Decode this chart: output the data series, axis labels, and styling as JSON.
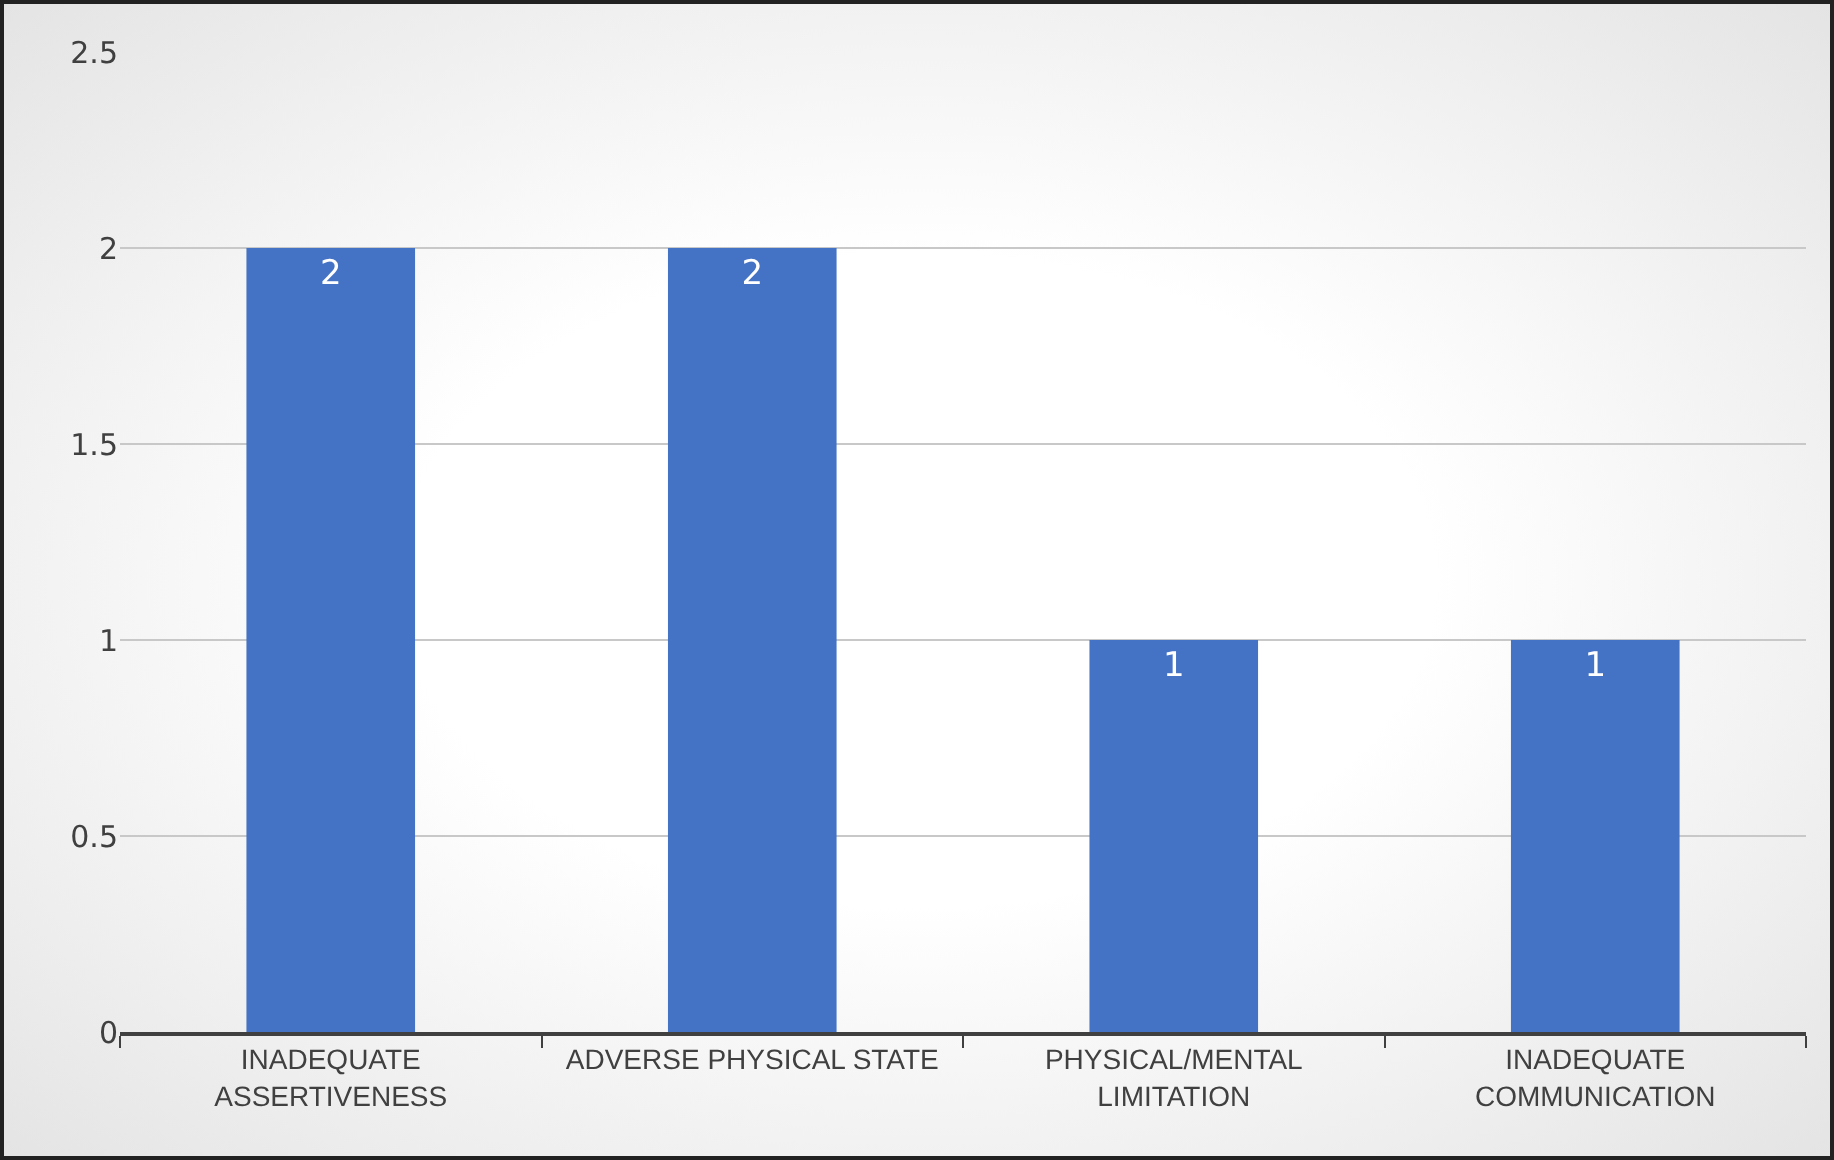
{
  "chart_data": {
    "type": "bar",
    "categories": [
      "INADEQUATE ASSERTIVENESS",
      "ADVERSE PHYSICAL STATE",
      "PHYSICAL/MENTAL LIMITATION",
      "INADEQUATE COMMUNICATION"
    ],
    "values": [
      2,
      2,
      1,
      1
    ],
    "color": "#4472c4",
    "ylim": [
      0,
      2.5
    ],
    "yticks": [
      0,
      0.5,
      1,
      1.5,
      2,
      2.5
    ],
    "grid": "y",
    "data_labels": true
  }
}
